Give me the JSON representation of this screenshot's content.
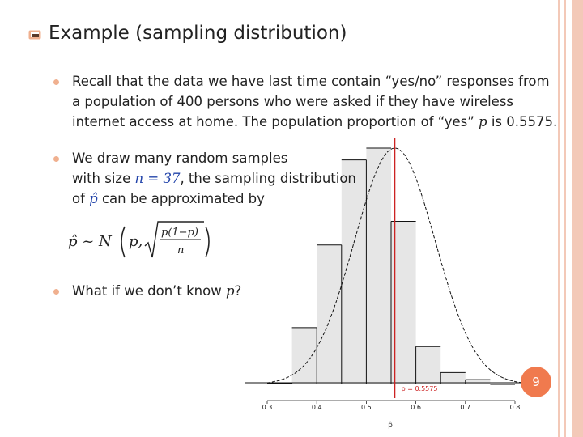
{
  "slide": {
    "title": "Example (sampling distribution)",
    "bullets": [
      {
        "lines": [
          "Recall that the data we have last time contain “yes/no” responses from",
          "a population of 400 persons who were asked if they have wireless"
        ],
        "line3_a": "internet access at home. The population proportion of “yes” ",
        "line3_var": "p",
        "line3_b": " is 0.5575."
      },
      {
        "line1": "We draw many random samples",
        "line2_a": "with size ",
        "line2_eq": "n = 37",
        "line2_b": ", the sampling distribution",
        "line3_a": "of ",
        "line3_var": "p̂",
        "line3_b": " can be approximated by"
      },
      {
        "text_a": "What if we don’t know ",
        "text_var": "p",
        "text_b": "?"
      }
    ],
    "formula": {
      "lhs": "p̂ ~ N",
      "param": "p,",
      "numerator": "p(1−p)",
      "denominator": "n"
    },
    "slide_number": "9"
  },
  "colors": {
    "accent": "#f0b08f",
    "slide_number_bg": "#f07a4e",
    "border": "#f3c9b8",
    "true_value_line": "#cc2222",
    "histogram_fill": "#e6e6e6"
  },
  "chart_data": {
    "type": "bar",
    "bin_edges": [
      0.3,
      0.35,
      0.4,
      0.45,
      0.5,
      0.55,
      0.6,
      0.65,
      0.7,
      0.75,
      0.8
    ],
    "relative_heights": [
      0.005,
      0.24,
      0.59,
      0.95,
      1.0,
      0.69,
      0.16,
      0.05,
      0.02,
      0.0
    ],
    "x_ticks": [
      0.3,
      0.4,
      0.5,
      0.6,
      0.7,
      0.8
    ],
    "xlim": [
      0.3,
      0.8
    ],
    "xlabel": "p̂",
    "reference_line": {
      "x": 0.5575,
      "label": "p = 0.5575"
    },
    "normal_curve": {
      "mean": 0.5575,
      "sd": 0.0816
    }
  }
}
